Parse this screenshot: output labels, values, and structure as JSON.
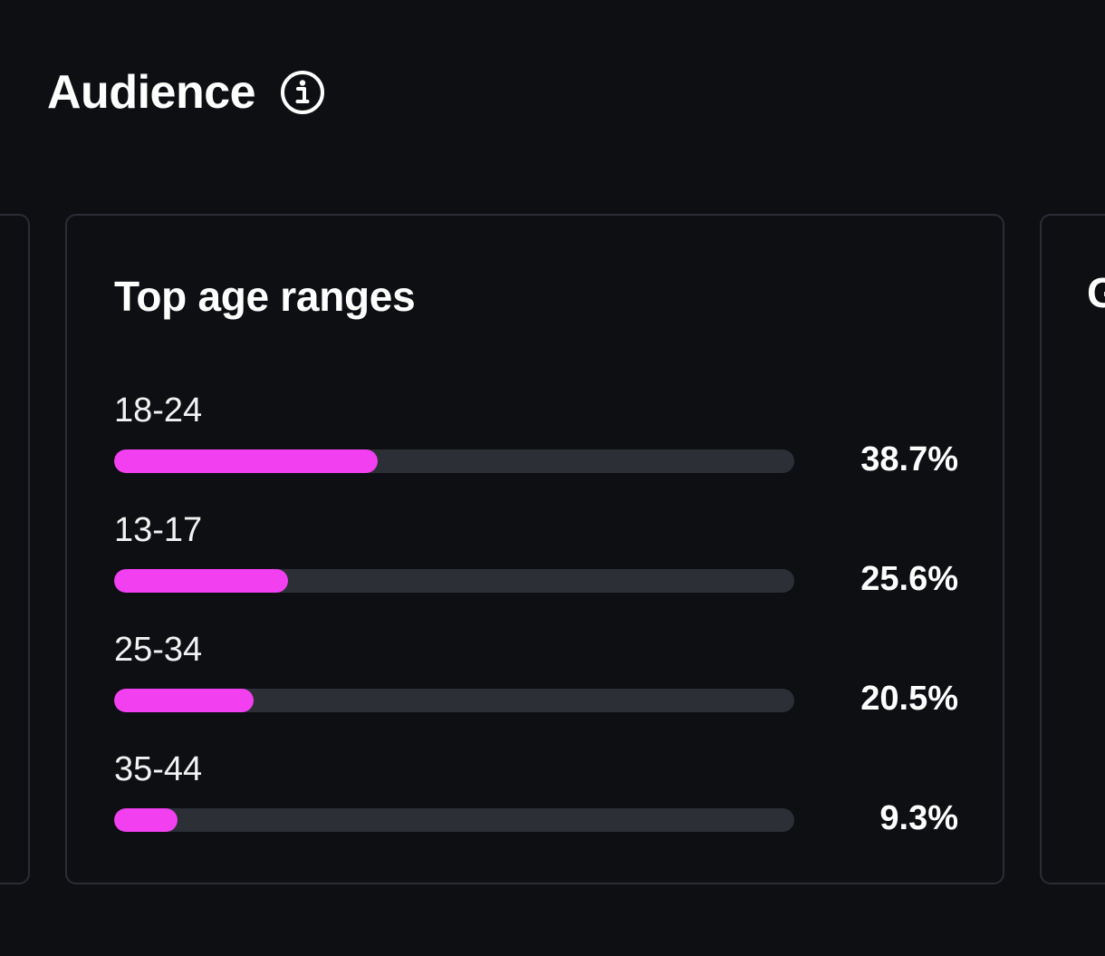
{
  "section": {
    "title": "Audience",
    "info_icon": "info-circle-icon"
  },
  "cards": {
    "right_partial_title": "G"
  },
  "age_card": {
    "title": "Top age ranges",
    "accent_color": "#f23ff0",
    "track_color": "#2c2f36",
    "rows": [
      {
        "label": "18-24",
        "value": "38.7%",
        "fraction": 0.387
      },
      {
        "label": "13-17",
        "value": "25.6%",
        "fraction": 0.256
      },
      {
        "label": "25-34",
        "value": "20.5%",
        "fraction": 0.205
      },
      {
        "label": "35-44",
        "value": "9.3%",
        "fraction": 0.093
      }
    ]
  },
  "chart_data": {
    "type": "bar",
    "title": "Top age ranges",
    "categories": [
      "18-24",
      "13-17",
      "25-34",
      "35-44"
    ],
    "values": [
      38.7,
      25.6,
      20.5,
      9.3
    ],
    "ylim": [
      0,
      100
    ]
  }
}
